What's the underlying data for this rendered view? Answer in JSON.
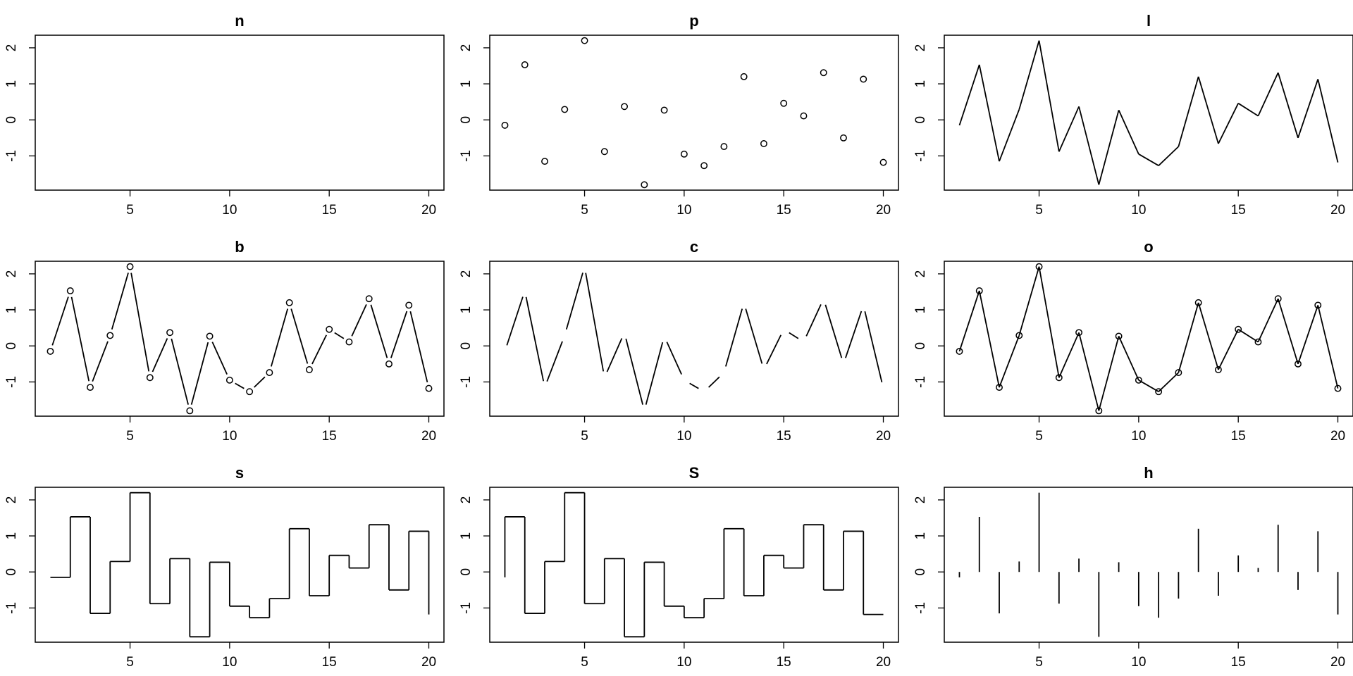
{
  "chart_data": [
    {
      "type": "none",
      "plot_type_code": "n",
      "title": "n"
    },
    {
      "type": "scatter",
      "plot_type_code": "p",
      "title": "p"
    },
    {
      "type": "line",
      "plot_type_code": "l",
      "title": "l"
    },
    {
      "type": "line",
      "plot_type_code": "b",
      "title": "b"
    },
    {
      "type": "line",
      "plot_type_code": "c",
      "title": "c"
    },
    {
      "type": "line",
      "plot_type_code": "o",
      "title": "o"
    },
    {
      "type": "step",
      "plot_type_code": "s",
      "title": "s"
    },
    {
      "type": "step",
      "plot_type_code": "S",
      "title": "S"
    },
    {
      "type": "histogram-lines",
      "plot_type_code": "h",
      "title": "h"
    }
  ],
  "shared": {
    "x": [
      1,
      2,
      3,
      4,
      5,
      6,
      7,
      8,
      9,
      10,
      11,
      12,
      13,
      14,
      15,
      16,
      17,
      18,
      19,
      20
    ],
    "y": [
      -0.15,
      1.53,
      -1.15,
      0.29,
      2.2,
      -0.88,
      0.37,
      -1.8,
      0.27,
      -0.95,
      -1.27,
      -0.74,
      1.2,
      -0.66,
      0.46,
      0.11,
      1.31,
      -0.5,
      1.13,
      -1.18
    ],
    "x_ticks": [
      5,
      10,
      15,
      20
    ],
    "y_ticks": [
      2,
      1,
      0,
      -1
    ],
    "xlim": [
      0.24,
      20.76
    ],
    "ylim": [
      -1.95,
      2.35
    ],
    "grid": false,
    "legend": "none",
    "line_color": "#000000"
  }
}
